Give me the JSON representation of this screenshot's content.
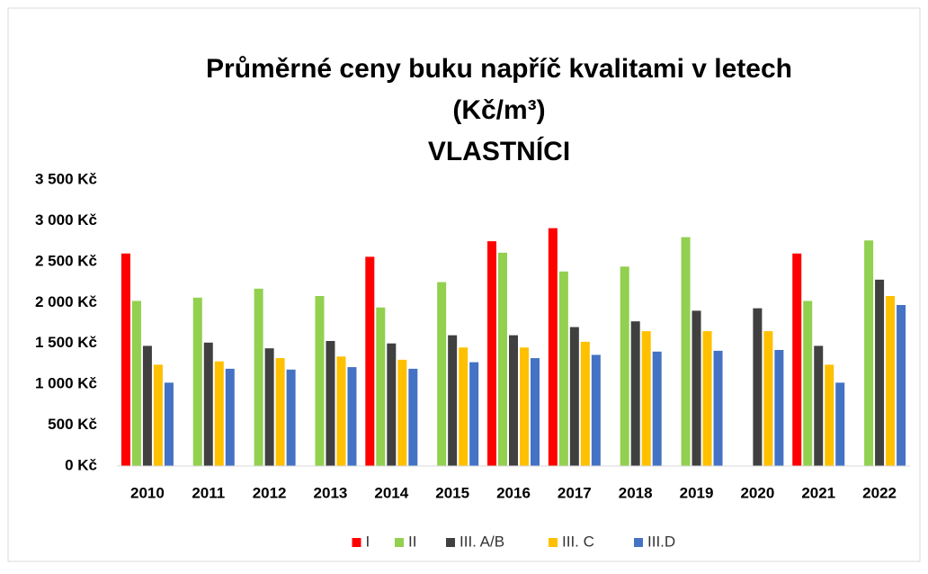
{
  "chart_data": {
    "type": "bar",
    "title": [
      "Průměrné ceny buku napříč kvalitami v letech",
      "(Kč/m³)",
      "VLASTNÍCI"
    ],
    "categories": [
      "2010",
      "2011",
      "2012",
      "2013",
      "2014",
      "2015",
      "2016",
      "2017",
      "2018",
      "2019",
      "2020",
      "2021",
      "2022"
    ],
    "series": [
      {
        "name": "I",
        "color": "#ff0000",
        "values": [
          2600,
          null,
          null,
          null,
          2560,
          null,
          2750,
          2910,
          null,
          null,
          null,
          2600,
          null
        ]
      },
      {
        "name": "II",
        "color": "#92d050",
        "values": [
          2020,
          2060,
          2170,
          2080,
          1940,
          2250,
          2610,
          2380,
          2440,
          2800,
          null,
          2020,
          2760
        ]
      },
      {
        "name": "III. A/B",
        "color": "#404040",
        "values": [
          1470,
          1510,
          1440,
          1530,
          1500,
          1600,
          1600,
          1700,
          1770,
          1900,
          1930,
          1470,
          2280
        ]
      },
      {
        "name": "III. C",
        "color": "#ffc000",
        "values": [
          1240,
          1280,
          1320,
          1340,
          1300,
          1450,
          1450,
          1520,
          1650,
          1650,
          1650,
          1240,
          2080
        ]
      },
      {
        "name": "III.D",
        "color": "#4472c4",
        "values": [
          1020,
          1190,
          1180,
          1210,
          1190,
          1270,
          1320,
          1360,
          1400,
          1410,
          1420,
          1020,
          1970
        ]
      }
    ],
    "ylim": [
      0,
      3500
    ],
    "yticks": [
      {
        "value": 0,
        "label": "0 Kč"
      },
      {
        "value": 500,
        "label": "500 Kč"
      },
      {
        "value": 1000,
        "label": "1 000 Kč"
      },
      {
        "value": 1500,
        "label": "1 500 Kč"
      },
      {
        "value": 2000,
        "label": "2 000 Kč"
      },
      {
        "value": 2500,
        "label": "2 500 Kč"
      },
      {
        "value": 3000,
        "label": "3 000 Kč"
      },
      {
        "value": 3500,
        "label": "3 500 Kč"
      }
    ],
    "grid": false,
    "legend": "bottom"
  }
}
